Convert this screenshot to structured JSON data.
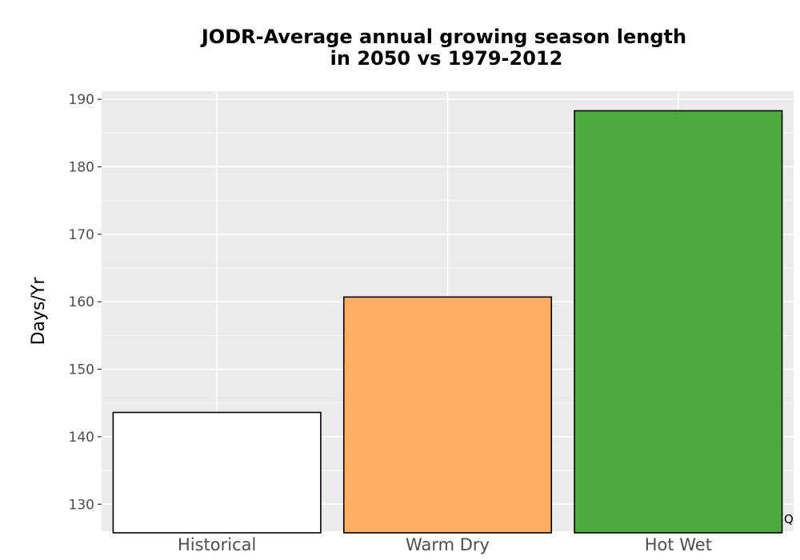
{
  "chart_data": {
    "type": "bar",
    "title_lines": [
      "JODR-Average annual growing season length",
      "in 2050 vs 1979-2012"
    ],
    "xlabel": "",
    "ylabel": "Days/Yr",
    "categories": [
      "Historical",
      "Warm Dry",
      "Hot Wet"
    ],
    "values": [
      143.6,
      160.7,
      188.3
    ],
    "colors": [
      "#ffffff",
      "#fdae61",
      "#4daa3f"
    ],
    "y_ticks": [
      130,
      140,
      150,
      160,
      170,
      180,
      190
    ],
    "ylim": [
      126.0,
      191.2
    ],
    "grid": true,
    "legend": "none",
    "panel_background": "#ebebeb",
    "corner_mark": "Q"
  }
}
